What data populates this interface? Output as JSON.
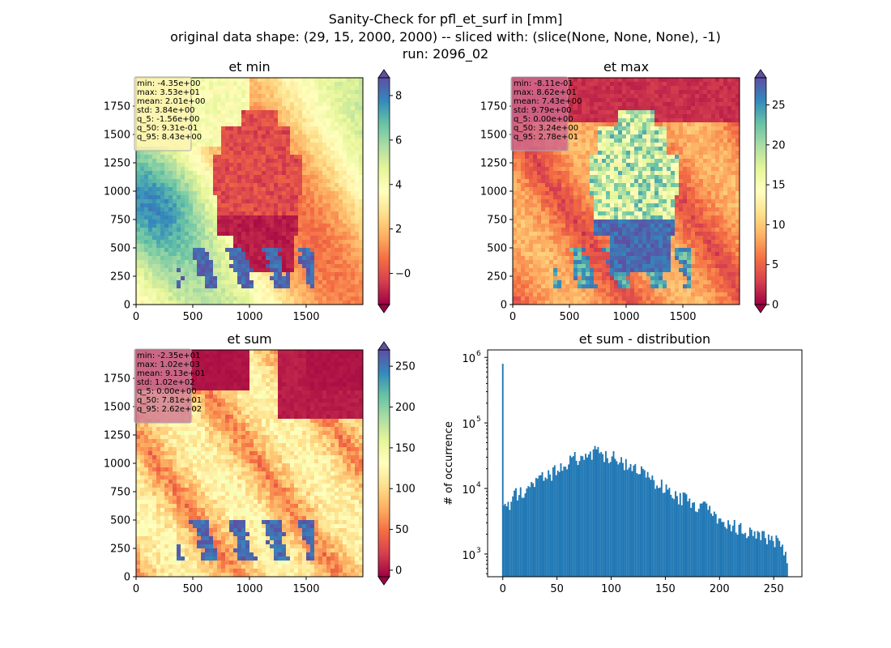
{
  "figure": {
    "suptitle_lines": [
      "Sanity-Check for pfl_et_surf in [mm]",
      "original data shape: (29, 15, 2000, 2000) -- sliced with: (slice(None, None, None), -1)",
      "run: 2096_02"
    ],
    "colormap": "Spectral",
    "colormap_stops": [
      "#9e0142",
      "#d53e4f",
      "#f46d43",
      "#fdae61",
      "#fee08b",
      "#ffffbf",
      "#e6f598",
      "#abdda4",
      "#66c2a5",
      "#3288bd",
      "#5e4fa2"
    ],
    "histogram_color": "#1f77b4"
  },
  "chart_data": [
    {
      "type": "heatmap",
      "title": "et min",
      "xlim": [
        0,
        2000
      ],
      "ylim": [
        0,
        2000
      ],
      "xticks": [
        "0",
        "500",
        "1000",
        "1500"
      ],
      "yticks": [
        "0",
        "250",
        "500",
        "750",
        "1000",
        "1250",
        "1500",
        "1750"
      ],
      "colorbar": {
        "range": [
          -1.4,
          8.8
        ],
        "ticks": [
          0,
          2,
          4,
          6,
          8
        ],
        "tick_labels": [
          "−0",
          "2",
          "4",
          "6",
          "8"
        ],
        "extend": "both"
      },
      "stats": [
        "min: -4.35e+00",
        "max: 3.53e+01",
        "mean: 2.01e+00",
        "std: 3.84e+00",
        "q_5: -1.56e+00",
        "q_50: 9.31e-01",
        "q_95: 8.43e+00"
      ],
      "stats_box_color": "#fbf3b0"
    },
    {
      "type": "heatmap",
      "title": "et max",
      "xlim": [
        0,
        2000
      ],
      "ylim": [
        0,
        2000
      ],
      "xticks": [
        "0",
        "500",
        "1000",
        "1500"
      ],
      "yticks": [
        "0",
        "250",
        "500",
        "750",
        "1000",
        "1250",
        "1500",
        "1750"
      ],
      "colorbar": {
        "range": [
          0,
          28.4
        ],
        "ticks": [
          0,
          5,
          10,
          15,
          20,
          25
        ],
        "tick_labels": [
          "0",
          "5",
          "10",
          "15",
          "20",
          "25"
        ],
        "extend": "both"
      },
      "stats": [
        "min: -8.11e-01",
        "max: 8.62e+01",
        "mean: 7.43e+00",
        "std: 9.79e+00",
        "q_5: 0.00e+00",
        "q_50: 3.24e+00",
        "q_95: 2.78e+01"
      ],
      "stats_box_color": "#cf6a8e"
    },
    {
      "type": "heatmap",
      "title": "et sum",
      "xlim": [
        0,
        2000
      ],
      "ylim": [
        0,
        2000
      ],
      "xticks": [
        "0",
        "500",
        "1000",
        "1500"
      ],
      "yticks": [
        "0",
        "250",
        "500",
        "750",
        "1000",
        "1250",
        "1500",
        "1750"
      ],
      "colorbar": {
        "range": [
          -8,
          270
        ],
        "ticks": [
          0,
          50,
          100,
          150,
          200,
          250
        ],
        "tick_labels": [
          "0",
          "50",
          "100",
          "150",
          "200",
          "250"
        ],
        "extend": "both"
      },
      "stats": [
        "min: -2.35e+01",
        "max: 1.02e+03",
        "mean: 9.13e+01",
        "std: 1.02e+02",
        "q_5: 0.00e+00",
        "q_50: 7.81e+01",
        "q_95: 2.62e+02"
      ],
      "stats_box_color": "#d17a93"
    },
    {
      "type": "bar",
      "subtype": "histogram",
      "title": "et sum - distribution",
      "xlabel": "",
      "ylabel": "# of occurrence",
      "yscale": "log",
      "xlim": [
        -14,
        276
      ],
      "ylim": [
        450,
        1300000
      ],
      "xticks": [
        0,
        50,
        100,
        150,
        200,
        250
      ],
      "xtick_labels": [
        "0",
        "50",
        "100",
        "150",
        "200",
        "250"
      ],
      "ytick_exponents": [
        3,
        4,
        5,
        6
      ],
      "ytick_labels": [
        "10",
        "10",
        "10",
        "10"
      ],
      "ytick_superscripts": [
        "3",
        "4",
        "5",
        "6"
      ],
      "bin_range": [
        -23.5,
        262
      ],
      "bin_width": 1.43,
      "spike": {
        "x": 0,
        "value": 800000
      },
      "profile": [
        {
          "x": 0,
          "value": 4800
        },
        {
          "x": 10,
          "value": 8000
        },
        {
          "x": 30,
          "value": 13000
        },
        {
          "x": 50,
          "value": 20000
        },
        {
          "x": 65,
          "value": 30000
        },
        {
          "x": 85,
          "value": 37000
        },
        {
          "x": 100,
          "value": 33000
        },
        {
          "x": 120,
          "value": 22000
        },
        {
          "x": 140,
          "value": 13000
        },
        {
          "x": 160,
          "value": 8000
        },
        {
          "x": 185,
          "value": 5500
        },
        {
          "x": 200,
          "value": 3500
        },
        {
          "x": 220,
          "value": 2400
        },
        {
          "x": 240,
          "value": 1900
        },
        {
          "x": 255,
          "value": 1500
        },
        {
          "x": 262,
          "value": 800
        }
      ]
    }
  ]
}
